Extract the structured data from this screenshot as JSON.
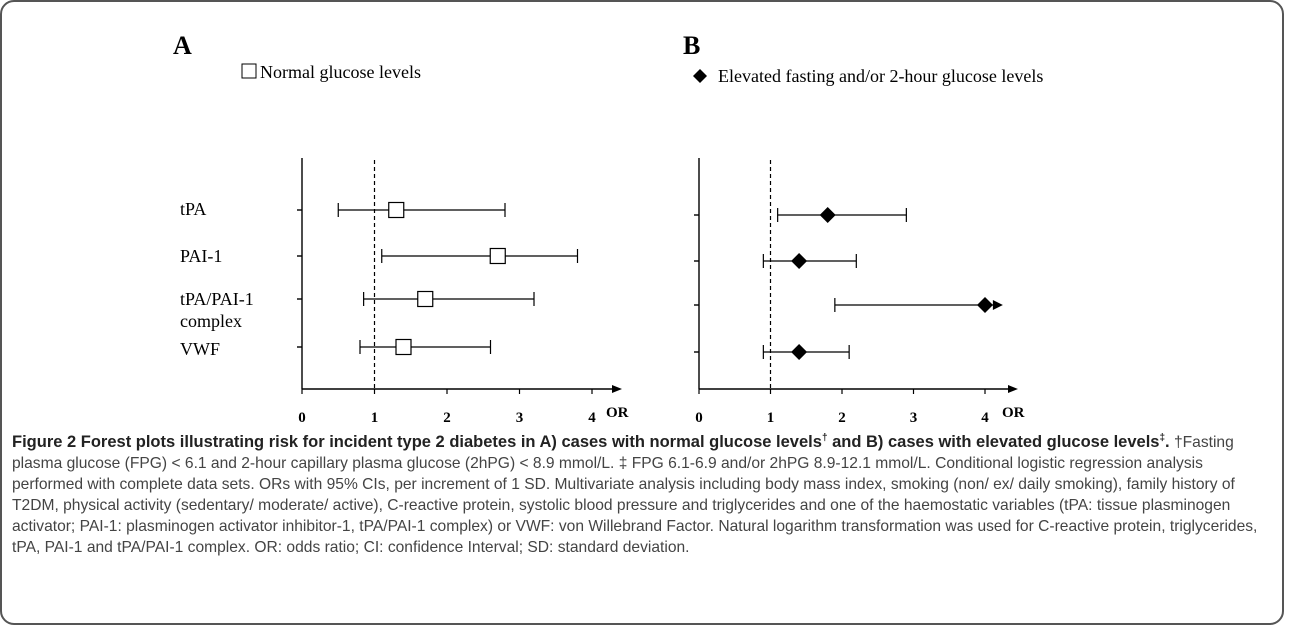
{
  "chart_data": [
    {
      "type": "forest",
      "panel_label": "A",
      "legend": {
        "label": "Normal glucose levels",
        "marker": "open-square",
        "placement": "top"
      },
      "categories": [
        "tPA",
        "PAI-1",
        "tPA/PAI-1",
        "VWF"
      ],
      "category_second_lines": [
        "",
        "",
        "complex",
        ""
      ],
      "points": [
        {
          "or": 1.3,
          "lower": 0.5,
          "upper": 2.8
        },
        {
          "or": 2.7,
          "lower": 1.1,
          "upper": 3.8
        },
        {
          "or": 1.7,
          "lower": 0.85,
          "upper": 3.2
        },
        {
          "or": 1.4,
          "lower": 0.8,
          "upper": 2.6
        }
      ],
      "x_ticks": [
        "0",
        "1",
        "2",
        "3",
        "4"
      ],
      "xlabel": "OR",
      "xlim": [
        0,
        4.4
      ],
      "reference_line": 1
    },
    {
      "type": "forest",
      "panel_label": "B",
      "legend": {
        "label": "Elevated fasting and/or 2-hour glucose levels",
        "marker": "filled-diamond",
        "placement": "top"
      },
      "categories": [
        "tPA",
        "PAI-1",
        "tPA/PAI-1 complex",
        "VWF"
      ],
      "points": [
        {
          "or": 1.8,
          "lower": 1.1,
          "upper": 2.9
        },
        {
          "or": 1.4,
          "lower": 0.9,
          "upper": 2.2
        },
        {
          "or": 4.0,
          "lower": 1.9,
          "upper": 4.25,
          "upper_arrow": true
        },
        {
          "or": 1.4,
          "lower": 0.9,
          "upper": 2.1
        }
      ],
      "x_ticks": [
        "0",
        "1",
        "2",
        "3",
        "4"
      ],
      "xlabel": "OR",
      "xlim": [
        0,
        4.4
      ],
      "reference_line": 1
    }
  ],
  "caption": {
    "lead_1": "Figure 2 Forest plots illustrating risk for incident type 2 diabetes in A) cases with normal glucose levels",
    "lead_sup_1": "†",
    "lead_2": " and B) cases with elevated glucose levels",
    "lead_sup_2": "‡",
    "lead_3": ".",
    "body": " †Fasting plasma glucose (FPG) < 6.1 and 2-hour capillary plasma glucose (2hPG) < 8.9 mmol/L. ‡ FPG 6.1-6.9 and/or 2hPG 8.9-12.1 mmol/L. Conditional logistic regression analysis performed with complete data sets. ORs with 95% CIs, per increment of 1 SD. Multivariate analysis including body mass index, smoking (non/ ex/ daily smoking), family history of T2DM, physical activity (sedentary/ moderate/ active), C-reactive protein, systolic blood pressure and triglycerides and one of the haemostatic variables (tPA: tissue plasminogen activator; PAI-1: plasminogen activator inhibitor-1, tPA/PAI-1 complex) or VWF: von Willebrand Factor. Natural logarithm transformation was used for C-reactive protein, triglycerides, tPA, PAI-1 and tPA/PAI-1 complex. OR: odds ratio; CI: confidence Interval; SD: standard deviation."
  }
}
